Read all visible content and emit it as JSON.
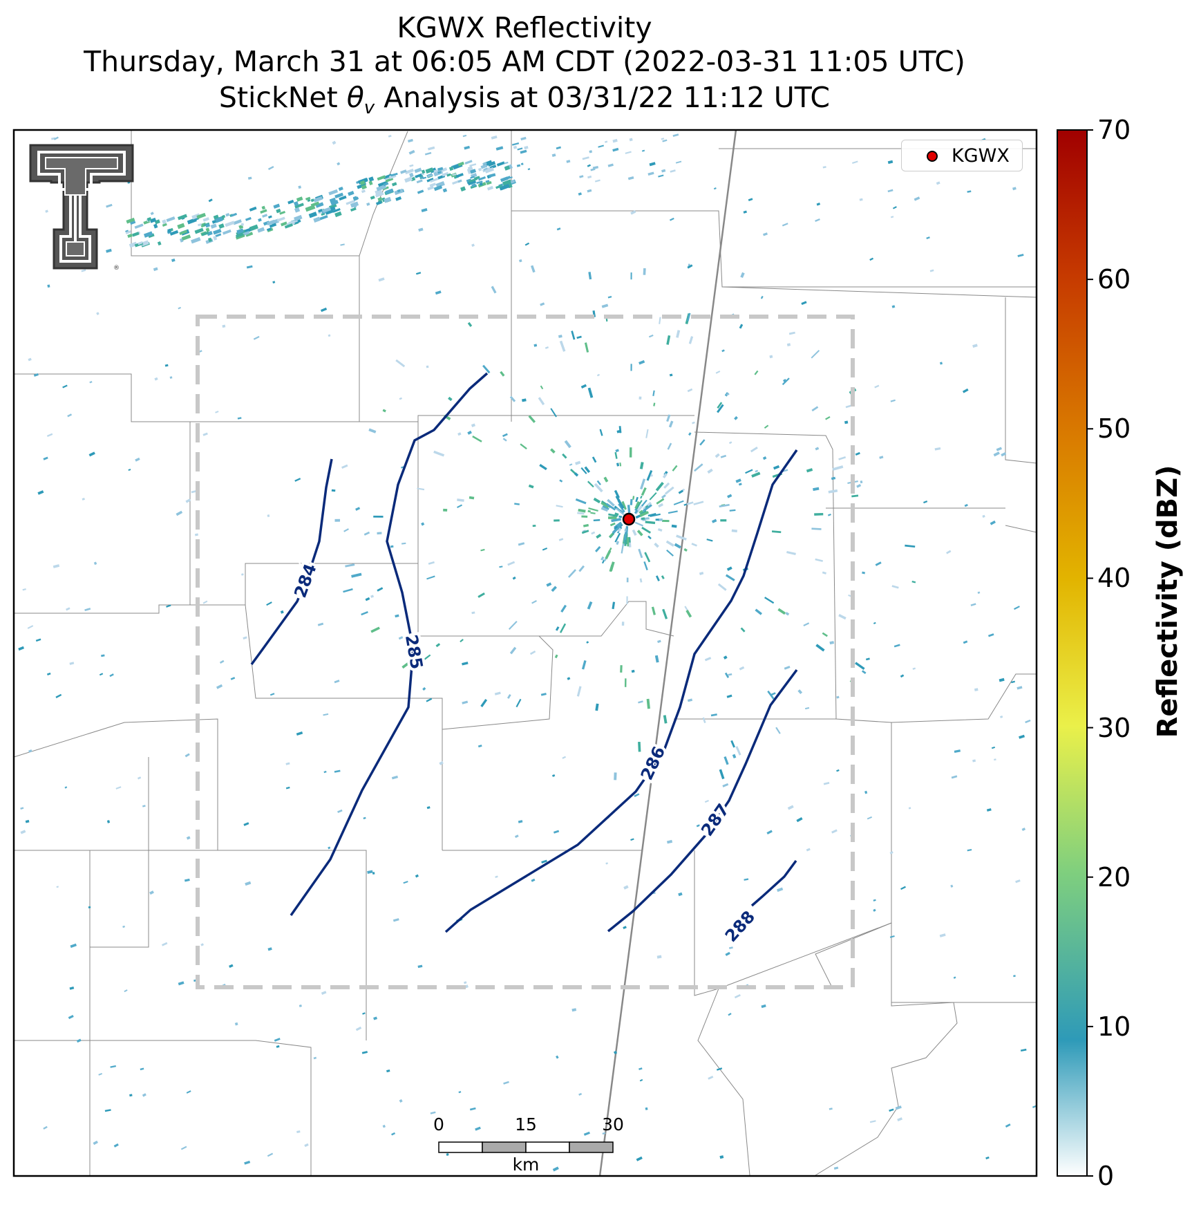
{
  "title": {
    "line1": "KGWX Reflectivity",
    "line2": "Thursday, March 31 at 06:05 AM CDT (2022-03-31 11:05 UTC)",
    "line3": "StickNet θv Analysis at 03/31/22 11:12 UTC"
  },
  "legend": {
    "label": "KGWX"
  },
  "colorbar": {
    "label": "Reflectivity (dBZ)",
    "range": [
      0,
      70
    ],
    "ticks": [
      "0",
      "10",
      "20",
      "30",
      "40",
      "50",
      "60",
      "70"
    ],
    "colors": [
      "#ffffff",
      "#2e9ab8",
      "#7fcf7e",
      "#eaf04a",
      "#e2b400",
      "#d97a00",
      "#c63a00",
      "#a00000"
    ]
  },
  "contours": [
    {
      "label": "284",
      "level": 284
    },
    {
      "label": "285",
      "level": 285
    },
    {
      "label": "286",
      "level": 286
    },
    {
      "label": "287",
      "level": 287
    },
    {
      "label": "288",
      "level": 288
    }
  ],
  "scale_bar": {
    "unit": "km",
    "ticks": [
      "0",
      "15",
      "30"
    ]
  },
  "logo": "texas-tech-double-t-logo"
}
